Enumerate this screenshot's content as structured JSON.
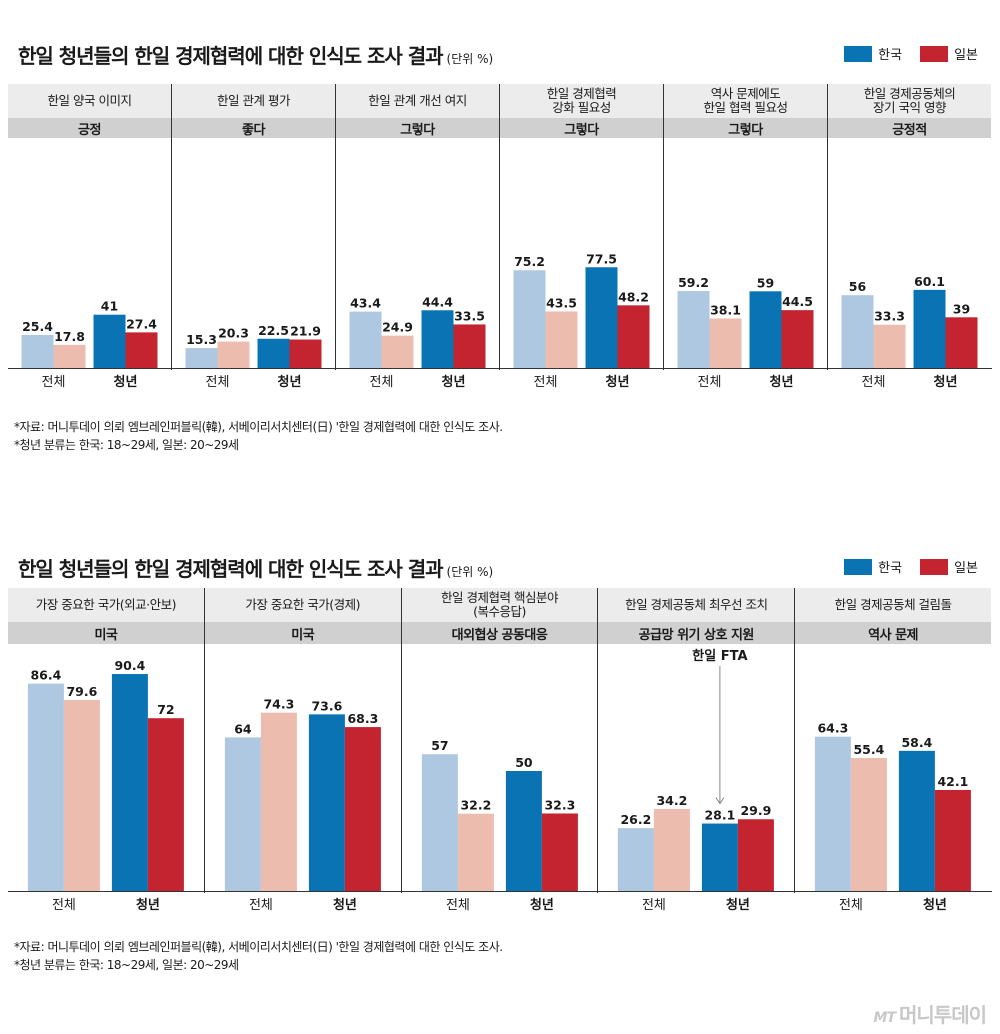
{
  "colors": {
    "korea": "#0a73b4",
    "japan": "#c4242f",
    "korea_all": "#aec8e2",
    "japan_all": "#ecbcae"
  },
  "legend": {
    "korea": "한국",
    "japan": "일본"
  },
  "watermark": {
    "brand_en": "MT",
    "brand_kr": "머니투데이"
  },
  "chart_data": [
    {
      "type": "bar",
      "title": "한일 청년들의 한일 경제협력에 대한 인식도 조사 결과",
      "unit": "(단위 %)",
      "categories": [
        "전체",
        "청년"
      ],
      "series_names": [
        "한국",
        "일본"
      ],
      "sources": [
        "*자료: 머니투데이 의뢰 엠브레인퍼블릭(韓), 서베이리서치센터(日) '한일 경제협력에 대한 인식도 조사.",
        "*청년 분류는 한국: 18~29세, 일본: 20~29세"
      ],
      "panels": [
        {
          "question": "한일 양국 이미지",
          "answer": "긍정",
          "values": [
            [
              25.4,
              17.8
            ],
            [
              41,
              27.4
            ]
          ]
        },
        {
          "question": "한일 관계 평가",
          "answer": "좋다",
          "values": [
            [
              15.3,
              20.3
            ],
            [
              22.5,
              21.9
            ]
          ]
        },
        {
          "question": "한일 관계 개선 여지",
          "answer": "그렇다",
          "values": [
            [
              43.4,
              24.9
            ],
            [
              44.4,
              33.5
            ]
          ]
        },
        {
          "question": "한일 경제협력\n강화 필요성",
          "answer": "그렇다",
          "values": [
            [
              75.2,
              43.5
            ],
            [
              77.5,
              48.2
            ]
          ]
        },
        {
          "question": "역사 문제에도\n한일 협력 필요성",
          "answer": "그렇다",
          "values": [
            [
              59.2,
              38.1
            ],
            [
              59,
              44.5
            ]
          ]
        },
        {
          "question": "한일 경제공동체의\n장기 국익 영향",
          "answer": "긍정적",
          "values": [
            [
              56,
              33.3
            ],
            [
              60.1,
              39
            ]
          ]
        }
      ]
    },
    {
      "type": "bar",
      "title": "한일 청년들의 한일 경제협력에 대한 인식도 조사 결과",
      "unit": "(단위 %)",
      "categories": [
        "전체",
        "청년"
      ],
      "series_names": [
        "한국",
        "일본"
      ],
      "sources": [
        "*자료: 머니투데이 의뢰 엠브레인퍼블릭(韓), 서베이리서치센터(日) '한일 경제협력에 대한 인식도 조사.",
        "*청년 분류는 한국: 18~29세, 일본: 20~29세"
      ],
      "panels": [
        {
          "question": "가장 중요한 국가(외교·안보)",
          "answer": "미국",
          "values": [
            [
              86.4,
              79.6
            ],
            [
              90.4,
              72
            ]
          ]
        },
        {
          "question": "가장 중요한 국가(경제)",
          "answer": "미국",
          "values": [
            [
              64,
              74.3
            ],
            [
              73.6,
              68.3
            ]
          ]
        },
        {
          "question": "한일 경제협력 핵심분야\n(복수응답)",
          "answer": "대외협상 공동대응",
          "values": [
            [
              57,
              32.2
            ],
            [
              50,
              32.3
            ]
          ]
        },
        {
          "question": "한일 경제공동체 최우선 조치",
          "answer": "공급망 위기 상호 지원",
          "values": [
            [
              26.2,
              34.2
            ],
            [
              28.1,
              29.9
            ]
          ],
          "annotation": "한일 FTA"
        },
        {
          "question": "한일 경제공동체 걸림돌",
          "answer": "역사 문제",
          "values": [
            [
              64.3,
              55.4
            ],
            [
              58.4,
              42.1
            ]
          ]
        }
      ]
    }
  ]
}
